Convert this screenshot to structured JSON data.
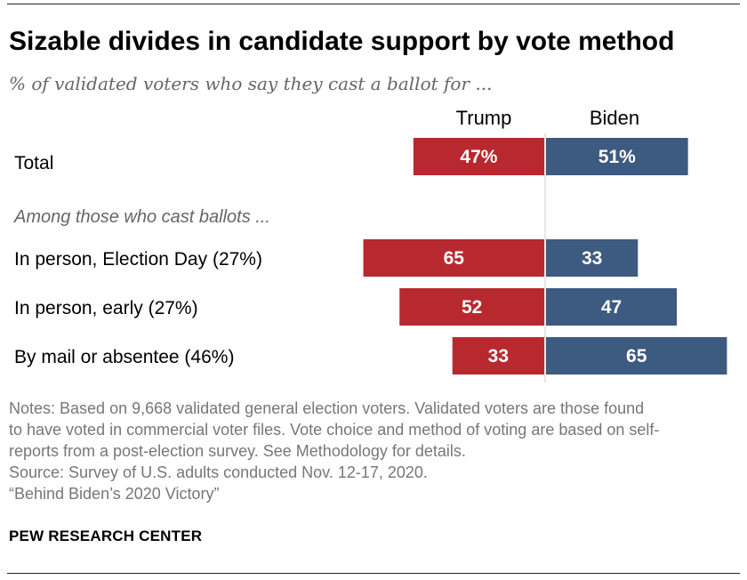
{
  "title": "Sizable divides in candidate support by vote method",
  "subtitle": "% of validated voters who say they cast a ballot for ...",
  "group_label": "Among those who cast ballots ...",
  "colors": {
    "trump": "#b8292f",
    "biden": "#3d5a80",
    "divider": "#e6e6e6"
  },
  "chart_data": {
    "type": "bar",
    "orientation": "horizontal-diverging",
    "series": [
      {
        "name": "Trump",
        "values": [
          47,
          65,
          52,
          33
        ]
      },
      {
        "name": "Biden",
        "values": [
          51,
          33,
          47,
          65
        ]
      }
    ],
    "categories": [
      "Total",
      "In person, Election Day (27%)",
      "In person, early (27%)",
      "By mail or absentee (46%)"
    ],
    "value_labels": [
      [
        "47%",
        "51%"
      ],
      [
        "65",
        "33"
      ],
      [
        "52",
        "47"
      ],
      [
        "33",
        "65"
      ]
    ]
  },
  "notes": [
    "Notes: Based on 9,668 validated general election voters. Validated voters are those found",
    "to have voted in commercial voter files. Vote choice and method of voting are based on self-",
    "reports from a post-election survey. See Methodology for details.",
    "Source: Survey of U.S. adults conducted Nov. 12-17, 2020.",
    "“Behind Biden’s 2020 Victory”"
  ],
  "brand": "PEW RESEARCH CENTER"
}
